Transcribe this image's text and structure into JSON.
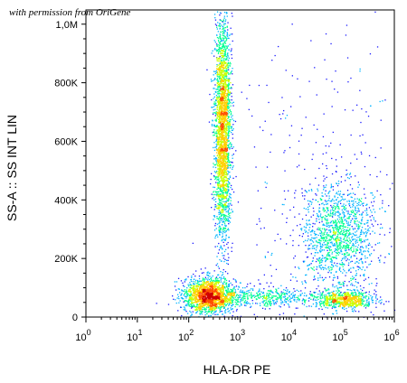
{
  "watermark": "with permission from OriGene",
  "chart_data": {
    "type": "scatter",
    "title": "",
    "xlabel": "HLA-DR PE",
    "ylabel": "SS-A :: SS INT LIN",
    "x_scale": "log",
    "xlim": [
      1,
      1000000
    ],
    "ylim": [
      0,
      1048576
    ],
    "x_ticks": [
      {
        "base": "10",
        "exp": "0",
        "value": 1
      },
      {
        "base": "10",
        "exp": "1",
        "value": 10
      },
      {
        "base": "10",
        "exp": "2",
        "value": 100
      },
      {
        "base": "10",
        "exp": "3",
        "value": 1000
      },
      {
        "base": "10",
        "exp": "4",
        "value": 10000
      },
      {
        "base": "10",
        "exp": "5",
        "value": 100000
      },
      {
        "base": "10",
        "exp": "6",
        "value": 1000000
      }
    ],
    "y_ticks": [
      {
        "label": "0",
        "value": 0
      },
      {
        "label": "200K",
        "value": 200000
      },
      {
        "label": "400K",
        "value": 400000
      },
      {
        "label": "600K",
        "value": 600000
      },
      {
        "label": "800K",
        "value": 800000
      },
      {
        "label": "1,0M",
        "value": 1000000
      }
    ],
    "colormap": [
      "#1a1aff",
      "#00b4ff",
      "#00ff90",
      "#c8ff00",
      "#ffd000",
      "#ff5000",
      "#d00000"
    ],
    "populations": [
      {
        "x_center": 250,
        "y_center": 75000,
        "x_spread_decades": 0.25,
        "y_spread": 30000,
        "count": 1800
      },
      {
        "x_center": 450,
        "y_center": 650000,
        "x_spread_decades": 0.08,
        "y_spread": 190000,
        "count": 2600
      },
      {
        "x_center": 80000,
        "y_center": 280000,
        "x_spread_decades": 0.35,
        "y_spread": 90000,
        "count": 1300
      },
      {
        "x_center": 100000,
        "y_center": 60000,
        "x_spread_decades": 0.3,
        "y_spread": 15000,
        "count": 700
      },
      {
        "x_center": 3000,
        "y_center": 70000,
        "x_spread_decades": 0.5,
        "y_spread": 15000,
        "count": 400
      },
      {
        "x_center": 30000,
        "y_center": 400000,
        "x_spread_decades": 0.9,
        "y_spread": 300000,
        "count": 350
      }
    ]
  }
}
